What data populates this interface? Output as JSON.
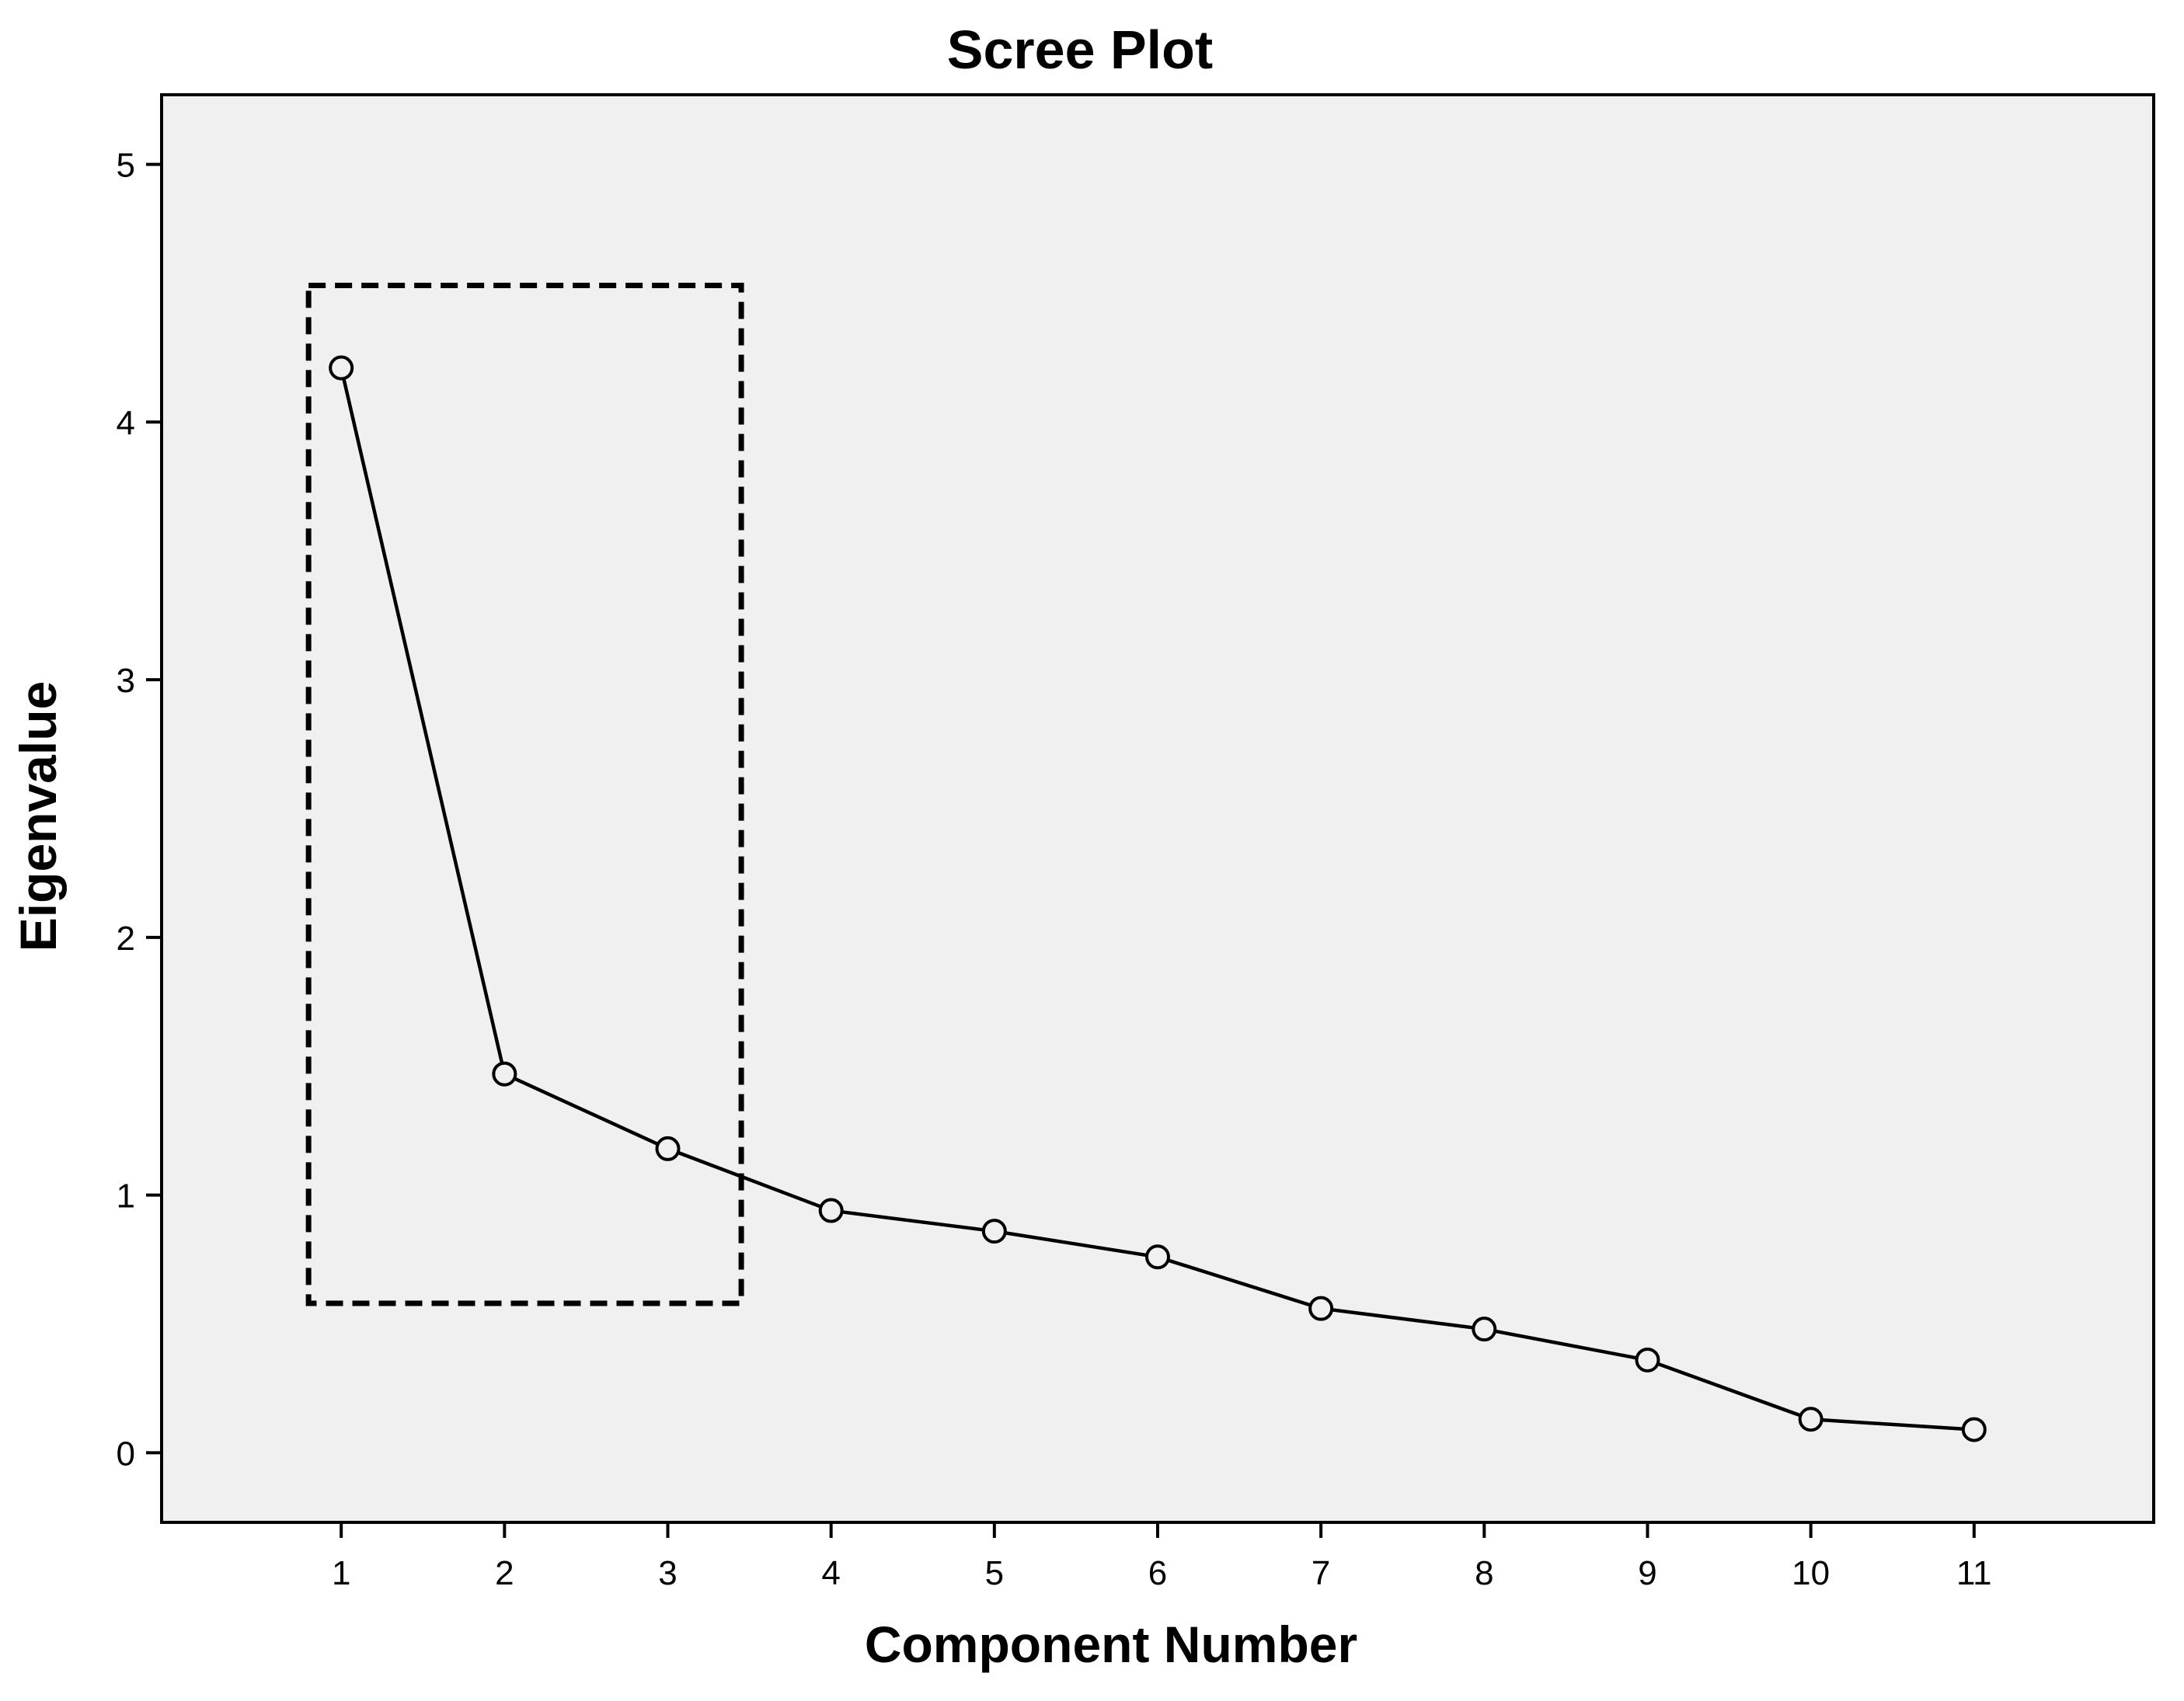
{
  "chart_data": {
    "type": "line",
    "title": "Scree Plot",
    "xlabel": "Component Number",
    "ylabel": "Eigenvalue",
    "x": [
      1,
      2,
      3,
      4,
      5,
      6,
      7,
      8,
      9,
      10,
      11
    ],
    "y": [
      4.21,
      1.47,
      1.18,
      0.94,
      0.86,
      0.76,
      0.56,
      0.48,
      0.36,
      0.13,
      0.09
    ],
    "xlim": [
      -0.1,
      12.1
    ],
    "ylim": [
      -0.27,
      5.27
    ],
    "xticks": [
      1,
      2,
      3,
      4,
      5,
      6,
      7,
      8,
      9,
      10,
      11
    ],
    "yticks": [
      0,
      1,
      2,
      3,
      4,
      5
    ],
    "grid": false,
    "marker": "open-circle",
    "highlight": {
      "x": [
        0.8,
        3.45
      ],
      "y": [
        0.58,
        4.53
      ],
      "style": "dashed"
    },
    "colors": {
      "plot_background": "#f0f0f0",
      "line": "#000000",
      "page": "#ffffff"
    }
  }
}
